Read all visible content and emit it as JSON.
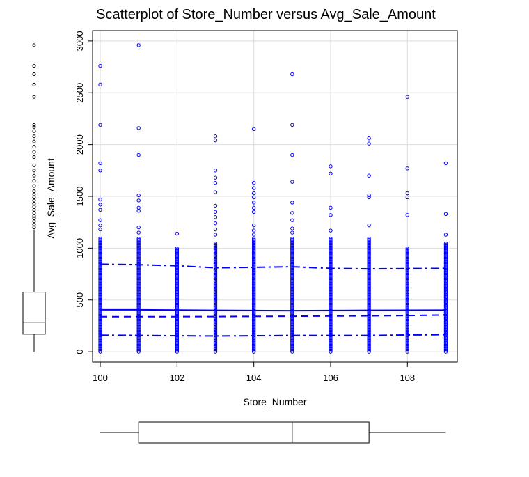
{
  "chart_data": {
    "type": "scatter",
    "title": "Scatterplot of Store_Number versus Avg_Sale_Amount",
    "xlabel": "Store_Number",
    "ylabel": "Avg_Sale_Amount",
    "xlim": [
      99.8,
      109.3
    ],
    "ylim": [
      -100,
      3100
    ],
    "xticks": [
      100,
      102,
      104,
      106,
      108
    ],
    "yticks": [
      0,
      500,
      1000,
      1500,
      2000,
      2500,
      3000
    ],
    "grid": true,
    "point_color": "#0000ff",
    "stores": [
      100,
      101,
      102,
      103,
      104,
      105,
      106,
      107,
      108,
      109
    ],
    "dense_max": [
      1100,
      1100,
      1000,
      1050,
      1100,
      1100,
      1100,
      1100,
      1000,
      1050
    ],
    "outliers": {
      "100": [
        1180,
        1220,
        1270,
        1370,
        1420,
        1470,
        1750,
        1820,
        2190,
        2580,
        2760
      ],
      "101": [
        1150,
        1200,
        1360,
        1390,
        1460,
        1510,
        1900,
        2160,
        2960
      ],
      "102": [
        1140
      ],
      "103": [
        1130,
        1180,
        1240,
        1300,
        1350,
        1410,
        1540,
        1630,
        1680,
        1750,
        2040,
        2080
      ],
      "104": [
        1130,
        1170,
        1220,
        1350,
        1390,
        1440,
        1490,
        1530,
        1580,
        1630,
        2150
      ],
      "105": [
        1150,
        1190,
        1270,
        1340,
        1440,
        1640,
        1900,
        2190,
        2680
      ],
      "106": [
        1170,
        1320,
        1390,
        1720,
        1790
      ],
      "107": [
        1220,
        1490,
        1510,
        1700,
        2010,
        2060
      ],
      "108": [
        1320,
        1490,
        1530,
        1770,
        2460
      ],
      "109": [
        1130,
        1330,
        1820
      ]
    },
    "smoother_lines": [
      {
        "style": "solid",
        "x": [
          100,
          101,
          102,
          103,
          104,
          105,
          106,
          107,
          108,
          109
        ],
        "y": [
          405,
          405,
          403,
          400,
          398,
          397,
          398,
          400,
          401,
          402
        ]
      },
      {
        "style": "dashed",
        "x": [
          100,
          101,
          102,
          103,
          104,
          105,
          106,
          107,
          108,
          109
        ],
        "y": [
          338,
          338,
          339,
          340,
          342,
          343,
          345,
          347,
          350,
          355
        ]
      },
      {
        "style": "dashdot",
        "x": [
          100,
          101,
          102,
          103,
          104,
          105,
          106,
          107,
          108,
          109
        ],
        "y": [
          845,
          840,
          830,
          810,
          815,
          820,
          805,
          800,
          803,
          805
        ]
      },
      {
        "style": "dashdot",
        "x": [
          100,
          101,
          102,
          103,
          104,
          105,
          106,
          107,
          108,
          109
        ],
        "y": [
          160,
          158,
          155,
          153,
          155,
          158,
          158,
          158,
          162,
          165
        ]
      }
    ],
    "boxplot_y": {
      "min": 0,
      "q1": 170,
      "median": 285,
      "q3": 575,
      "whisker_high": 1180,
      "outliers": [
        1200,
        1230,
        1260,
        1290,
        1310,
        1340,
        1370,
        1400,
        1430,
        1460,
        1490,
        1520,
        1550,
        1600,
        1650,
        1700,
        1750,
        1800,
        1880,
        1930,
        1980,
        2030,
        2080,
        2130,
        2170,
        2190,
        2460,
        2580,
        2680,
        2760,
        2960
      ]
    },
    "boxplot_x": {
      "min": 100,
      "q1": 101,
      "median": 105,
      "q3": 107,
      "max": 109
    }
  }
}
